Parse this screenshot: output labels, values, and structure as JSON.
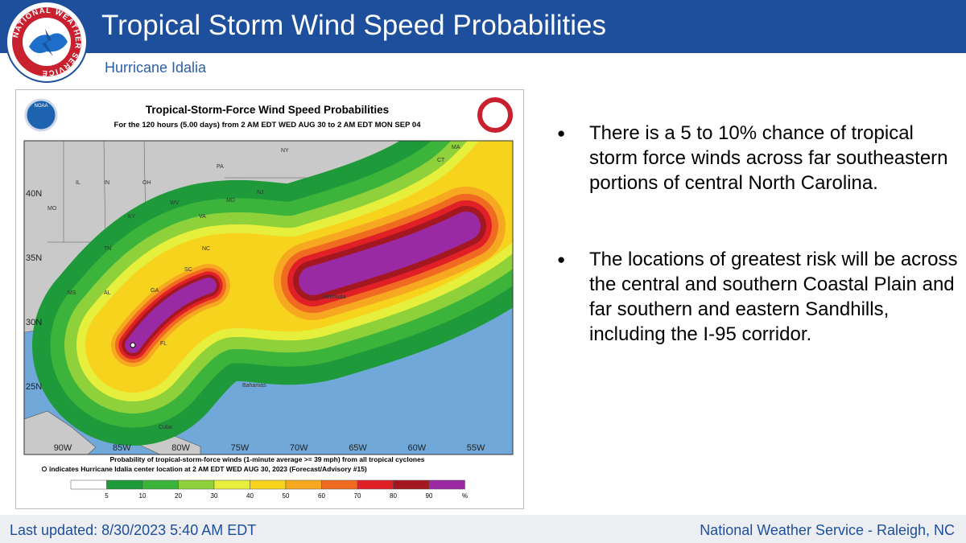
{
  "header": {
    "title": "Tropical Storm Wind Speed Probabilities",
    "subtitle": "Hurricane Idalia",
    "logo_text": "NATIONAL WEATHER SERVICE"
  },
  "map": {
    "title": "Tropical-Storm-Force Wind Speed Probabilities",
    "subtitle": "For the 120 hours (5.00 days) from 2 AM EDT WED AUG 30 to 2 AM EDT MON SEP 04",
    "noaa": "NOAA",
    "longitudes": [
      "90W",
      "85W",
      "80W",
      "75W",
      "70W",
      "65W",
      "60W",
      "55W"
    ],
    "latitudes": [
      "40N",
      "35N",
      "30N",
      "25N"
    ],
    "places": [
      "IL",
      "IN",
      "OH",
      "PA",
      "NY",
      "MA",
      "CT",
      "MO",
      "KY",
      "WV",
      "VA",
      "MD",
      "NJ",
      "TN",
      "NC",
      "SC",
      "MS",
      "AL",
      "GA",
      "FL",
      "Bermuda",
      "Bahamas",
      "Cuba"
    ],
    "caption_line1": "Probability of tropical-storm-force winds (1-minute average >= 39 mph) from all tropical cyclones",
    "caption_line2": "indicates Hurricane Idalia center location at 2 AM EDT WED AUG 30, 2023 (Forecast/Advisory #15)",
    "legend_colors": [
      "#ffffff",
      "#1e9a3a",
      "#3cb43c",
      "#8fd13b",
      "#e5ef3c",
      "#f7d31e",
      "#f7a821",
      "#f16a21",
      "#e01f26",
      "#a31720",
      "#9a2aa4"
    ],
    "legend_labels": [
      "5",
      "10",
      "20",
      "30",
      "40",
      "50",
      "60",
      "70",
      "80",
      "90",
      "%"
    ]
  },
  "bullets": [
    "There is a 5 to 10% chance of tropical storm force winds across far southeastern portions of central North Carolina.",
    "The locations of greatest risk will be across the central and southern Coastal Plain and far southern and eastern Sandhills, including the I-95 corridor."
  ],
  "footer": {
    "updated": "Last updated: 8/30/2023 5:40 AM EDT",
    "office": "National Weather Service - Raleigh, NC"
  }
}
